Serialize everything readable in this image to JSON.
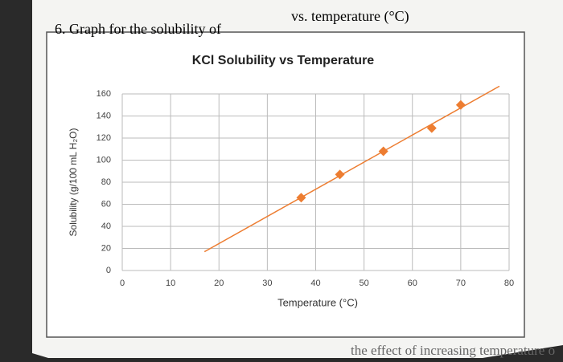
{
  "header": {
    "left": "6. Graph for the solubility of",
    "right": "vs. temperature (°C)"
  },
  "footer": {
    "text": "the effect of increasing temperature o"
  },
  "chart_data": {
    "type": "scatter",
    "title": "KCl Solubility vs Temperature",
    "x_label": "Temperature (°C)",
    "y_label": "Solubility (g/100 mL H₂O)",
    "x": [
      37,
      45,
      54,
      64,
      70
    ],
    "values": [
      66,
      87,
      108,
      129,
      150
    ],
    "color": "#ed7d31",
    "trendline": true,
    "xlim": [
      0,
      80
    ],
    "xticks": [
      0,
      10,
      20,
      30,
      40,
      50,
      60,
      70,
      80
    ],
    "ylim": [
      0,
      160
    ],
    "yticks": [
      0,
      20,
      40,
      60,
      80,
      100,
      120,
      140,
      160
    ],
    "grid": true
  }
}
